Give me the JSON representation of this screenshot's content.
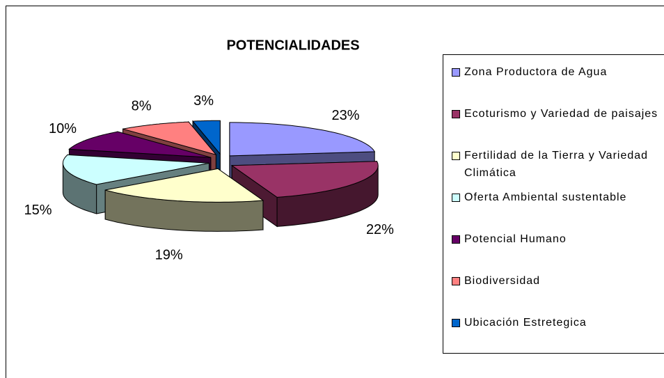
{
  "chart_data": {
    "type": "pie3d",
    "title": "POTENCIALIDADES",
    "categories": [
      "Zona Productora de Agua",
      "Ecoturismo y Variedad de paisajes",
      "Fertilidad de la Tierra y Variedad Climática",
      "Oferta Ambiental sustentable",
      "Potencial Humano",
      "Biodiversidad",
      "Ubicación Estretegica"
    ],
    "values": [
      23,
      22,
      19,
      15,
      10,
      8,
      3
    ],
    "value_labels": [
      "23%",
      "22%",
      "19%",
      "15%",
      "10%",
      "8%",
      "3%"
    ],
    "colors": [
      "#9999ff",
      "#993366",
      "#ffffcc",
      "#ccffff",
      "#660066",
      "#ff8080",
      "#0066cc"
    ],
    "legend": "right"
  }
}
